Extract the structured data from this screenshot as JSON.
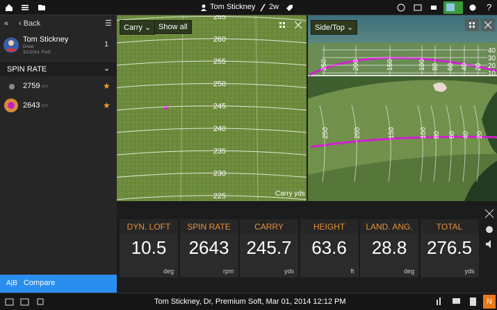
{
  "top_bar": {
    "player": "Tom Stickney",
    "club": "2w"
  },
  "sidebar": {
    "back": "Back",
    "player": {
      "name": "Tom Stickney",
      "club": "Driver",
      "date": "3/1/2014, FreS",
      "count": "1"
    },
    "section": "SPIN RATE",
    "shots": [
      {
        "value": "2759",
        "unit": "rpm"
      },
      {
        "value": "2643",
        "unit": "rpm"
      }
    ],
    "compare": {
      "icon": "A|B",
      "label": "Compare"
    }
  },
  "carry_view": {
    "mode": "Carry",
    "show_all": "Show all",
    "distances": [
      "265",
      "260",
      "255",
      "250",
      "245",
      "240",
      "235",
      "230",
      "225"
    ],
    "axis_label": "Carry yds"
  },
  "side_view": {
    "mode": "Side/Top",
    "distances": [
      "250",
      "200",
      "150",
      "100",
      "80",
      "60",
      "40",
      "20"
    ],
    "heights": [
      "40",
      "30",
      "20",
      "10"
    ]
  },
  "metrics": [
    {
      "label": "DYN. LOFT",
      "value": "10.5",
      "unit": "deg"
    },
    {
      "label": "SPIN RATE",
      "value": "2643",
      "unit": "rpm"
    },
    {
      "label": "CARRY",
      "value": "245.7",
      "unit": "yds"
    },
    {
      "label": "HEIGHT",
      "value": "63.6",
      "unit": "ft"
    },
    {
      "label": "LAND. ANG.",
      "value": "28.8",
      "unit": "deg"
    },
    {
      "label": "TOTAL",
      "value": "276.5",
      "unit": "yds"
    }
  ],
  "status_bar": {
    "text": "Tom Stickney, Dr, Premium Soft, Mar 01, 2014 12:12 PM",
    "badge": "N"
  }
}
